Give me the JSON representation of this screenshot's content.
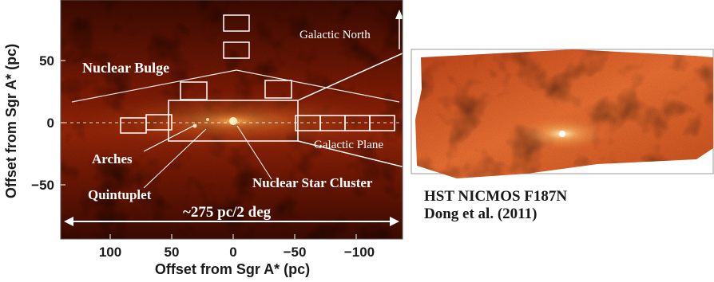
{
  "axes": {
    "xlabel": "Offset from Sgr A* (pc)",
    "ylabel": "Offset from Sgr A* (pc)",
    "x_ticks": [
      "100",
      "50",
      "0",
      "−50",
      "−100"
    ],
    "y_ticks": [
      "50",
      "0",
      "−50"
    ]
  },
  "labels": {
    "galactic_north": "Galactic North",
    "nuclear_bulge": "Nuclear Bulge",
    "galactic_plane": "Galactic Plane",
    "arches": "Arches",
    "quintuplet": "Quintuplet",
    "nuclear_star_cluster": "Nuclear Star Cluster",
    "scale": "~275 pc/2 deg"
  },
  "caption": {
    "instrument": "HST NICMOS F187N",
    "reference": "Dong et al. (2011)"
  },
  "colors": {
    "image_dark": "#2a0500",
    "image_mid": "#8c1e06",
    "image_bright": "#f0a040",
    "inset_base": "#d9602a",
    "overlay": "#ffffff"
  }
}
